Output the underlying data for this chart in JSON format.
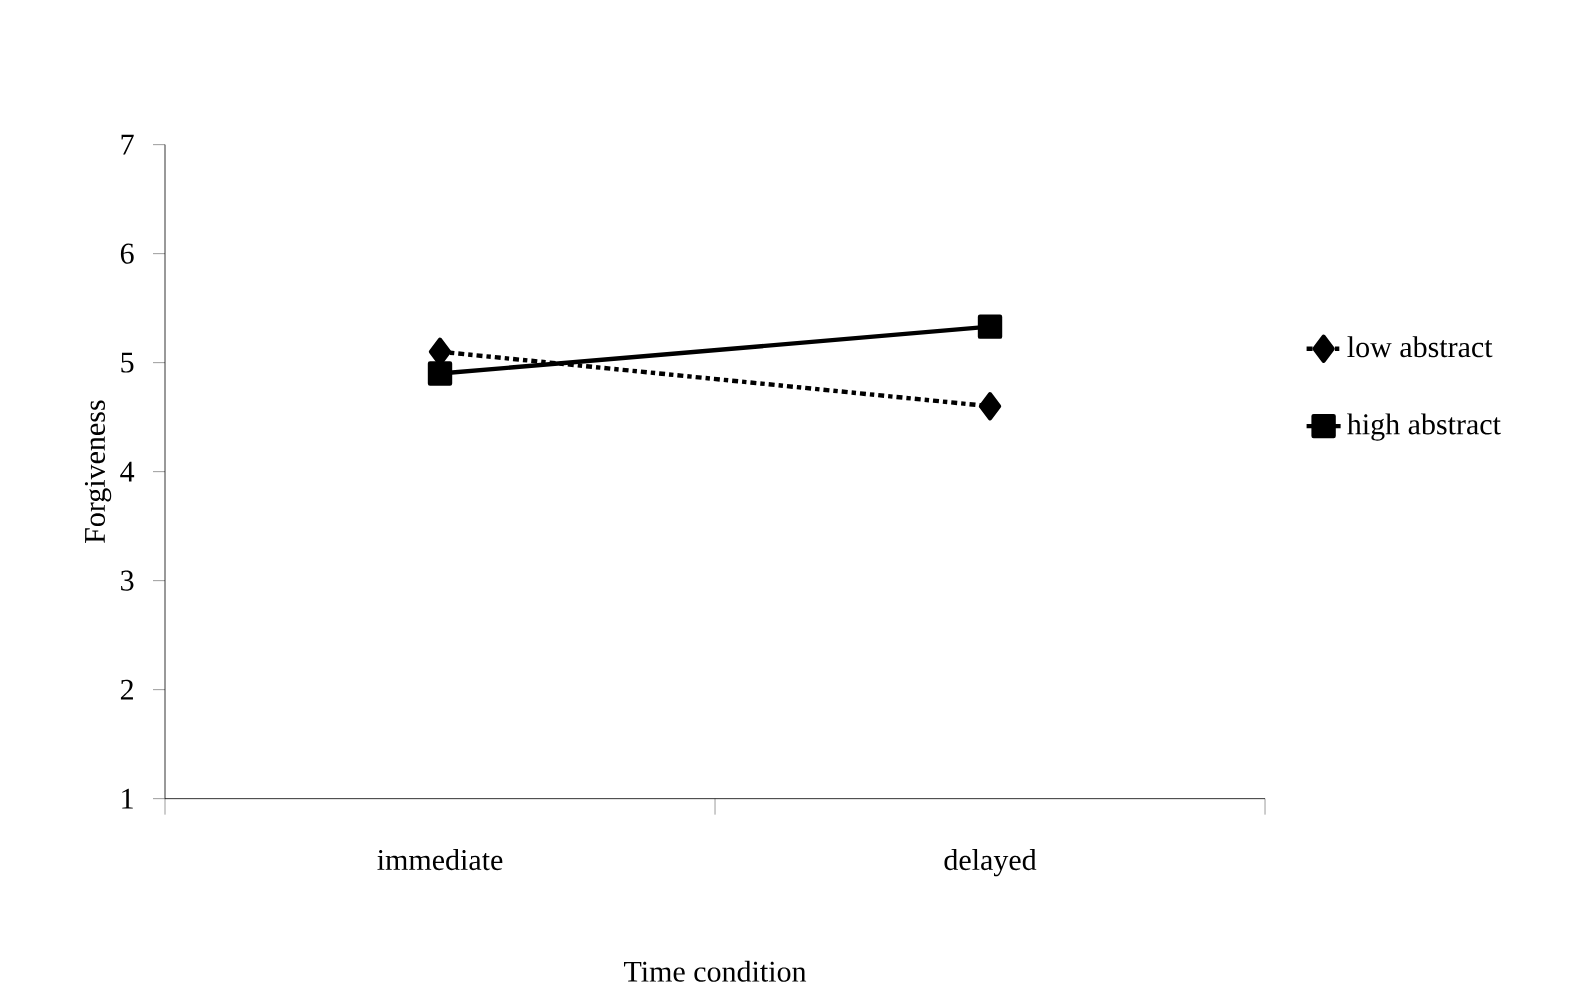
{
  "chart_data": {
    "type": "line",
    "xlabel": "Time condition",
    "ylabel": "Forgiveness",
    "categories": [
      "immediate",
      "delayed"
    ],
    "series": [
      {
        "name": "low abstract",
        "color": "#000000",
        "values": [
          5.1,
          4.6
        ],
        "marker": "diamond",
        "line_style": "dashdotted"
      },
      {
        "name": "high abstract",
        "color": "#000000",
        "values": [
          4.9,
          5.33
        ],
        "marker": "square",
        "line_style": "solid"
      }
    ],
    "ylim": [
      1,
      7
    ],
    "yticks": [
      1,
      2,
      3,
      4,
      5,
      6,
      7
    ],
    "grid": false,
    "legend": "right"
  }
}
